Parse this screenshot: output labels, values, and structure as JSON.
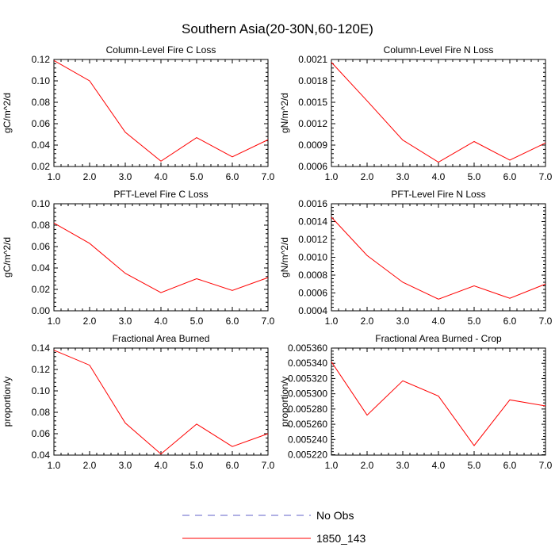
{
  "figure": {
    "title": "Southern Asia(20-30N,60-120E)",
    "legend": [
      {
        "label": "No Obs",
        "color": "#6060c8",
        "style": "dashed"
      },
      {
        "label": "1850_143",
        "color": "#ff0000",
        "style": "solid"
      }
    ]
  },
  "chart_data": [
    {
      "type": "line",
      "title": "Column-Level Fire C Loss",
      "xlabel": "",
      "ylabel": "gC/m^2/d",
      "x": [
        1,
        2,
        3,
        4,
        5,
        6,
        7
      ],
      "xticks": [
        "1.0",
        "2.0",
        "3.0",
        "4.0",
        "5.0",
        "6.0",
        "7.0"
      ],
      "ylim": [
        0.02,
        0.12
      ],
      "yticks": [
        "0.02",
        "0.04",
        "0.06",
        "0.08",
        "0.10",
        "0.12"
      ],
      "series": [
        {
          "name": "1850_143",
          "color": "#ff0000",
          "values": [
            0.119,
            0.1,
            0.052,
            0.025,
            0.047,
            0.029,
            0.045
          ]
        }
      ]
    },
    {
      "type": "line",
      "title": "Column-Level Fire N Loss",
      "xlabel": "",
      "ylabel": "gN/m^2/d",
      "x": [
        1,
        2,
        3,
        4,
        5,
        6,
        7
      ],
      "xticks": [
        "1.0",
        "2.0",
        "3.0",
        "4.0",
        "5.0",
        "6.0",
        "7.0"
      ],
      "ylim": [
        0.0006,
        0.0021
      ],
      "yticks": [
        "0.0006",
        "0.0009",
        "0.0012",
        "0.0015",
        "0.0018",
        "0.0021"
      ],
      "series": [
        {
          "name": "1850_143",
          "color": "#ff0000",
          "values": [
            0.00206,
            0.00152,
            0.00097,
            0.00066,
            0.00095,
            0.00069,
            0.00093
          ]
        }
      ]
    },
    {
      "type": "line",
      "title": "PFT-Level Fire C Loss",
      "xlabel": "",
      "ylabel": "gC/m^2/d",
      "x": [
        1,
        2,
        3,
        4,
        5,
        6,
        7
      ],
      "xticks": [
        "1.0",
        "2.0",
        "3.0",
        "4.0",
        "5.0",
        "6.0",
        "7.0"
      ],
      "ylim": [
        0.0,
        0.1
      ],
      "yticks": [
        "0.00",
        "0.02",
        "0.04",
        "0.06",
        "0.08",
        "0.10"
      ],
      "series": [
        {
          "name": "1850_143",
          "color": "#ff0000",
          "values": [
            0.082,
            0.063,
            0.035,
            0.017,
            0.03,
            0.019,
            0.031
          ]
        }
      ]
    },
    {
      "type": "line",
      "title": "PFT-Level Fire N Loss",
      "xlabel": "",
      "ylabel": "gN/m^2/d",
      "x": [
        1,
        2,
        3,
        4,
        5,
        6,
        7
      ],
      "xticks": [
        "1.0",
        "2.0",
        "3.0",
        "4.0",
        "5.0",
        "6.0",
        "7.0"
      ],
      "ylim": [
        0.0004,
        0.0016
      ],
      "yticks": [
        "0.0004",
        "0.0006",
        "0.0008",
        "0.0010",
        "0.0012",
        "0.0014",
        "0.0016"
      ],
      "series": [
        {
          "name": "1850_143",
          "color": "#ff0000",
          "values": [
            0.00145,
            0.00102,
            0.00072,
            0.00053,
            0.00068,
            0.00054,
            0.0007
          ]
        }
      ]
    },
    {
      "type": "line",
      "title": "Fractional Area Burned",
      "xlabel": "",
      "ylabel": "proportion/y",
      "x": [
        1,
        2,
        3,
        4,
        5,
        6,
        7
      ],
      "xticks": [
        "1.0",
        "2.0",
        "3.0",
        "4.0",
        "5.0",
        "6.0",
        "7.0"
      ],
      "ylim": [
        0.04,
        0.14
      ],
      "yticks": [
        "0.04",
        "0.06",
        "0.08",
        "0.10",
        "0.12",
        "0.14"
      ],
      "series": [
        {
          "name": "1850_143",
          "color": "#ff0000",
          "values": [
            0.138,
            0.124,
            0.07,
            0.041,
            0.069,
            0.048,
            0.06
          ]
        }
      ]
    },
    {
      "type": "line",
      "title": "Fractional Area Burned - Crop",
      "xlabel": "",
      "ylabel": "proportion/y",
      "x": [
        1,
        2,
        3,
        4,
        5,
        6,
        7
      ],
      "xticks": [
        "1.0",
        "2.0",
        "3.0",
        "4.0",
        "5.0",
        "6.0",
        "7.0"
      ],
      "ylim": [
        0.0052195,
        0.00536
      ],
      "yticks": [
        "0.005220",
        "0.005240",
        "0.005260",
        "0.005280",
        "0.005300",
        "0.005320",
        "0.005340",
        "0.005360"
      ],
      "series": [
        {
          "name": "1850_143",
          "color": "#ff0000",
          "values": [
            0.005342,
            0.005272,
            0.005317,
            0.005297,
            0.005232,
            0.005292,
            0.005284
          ]
        }
      ]
    }
  ]
}
